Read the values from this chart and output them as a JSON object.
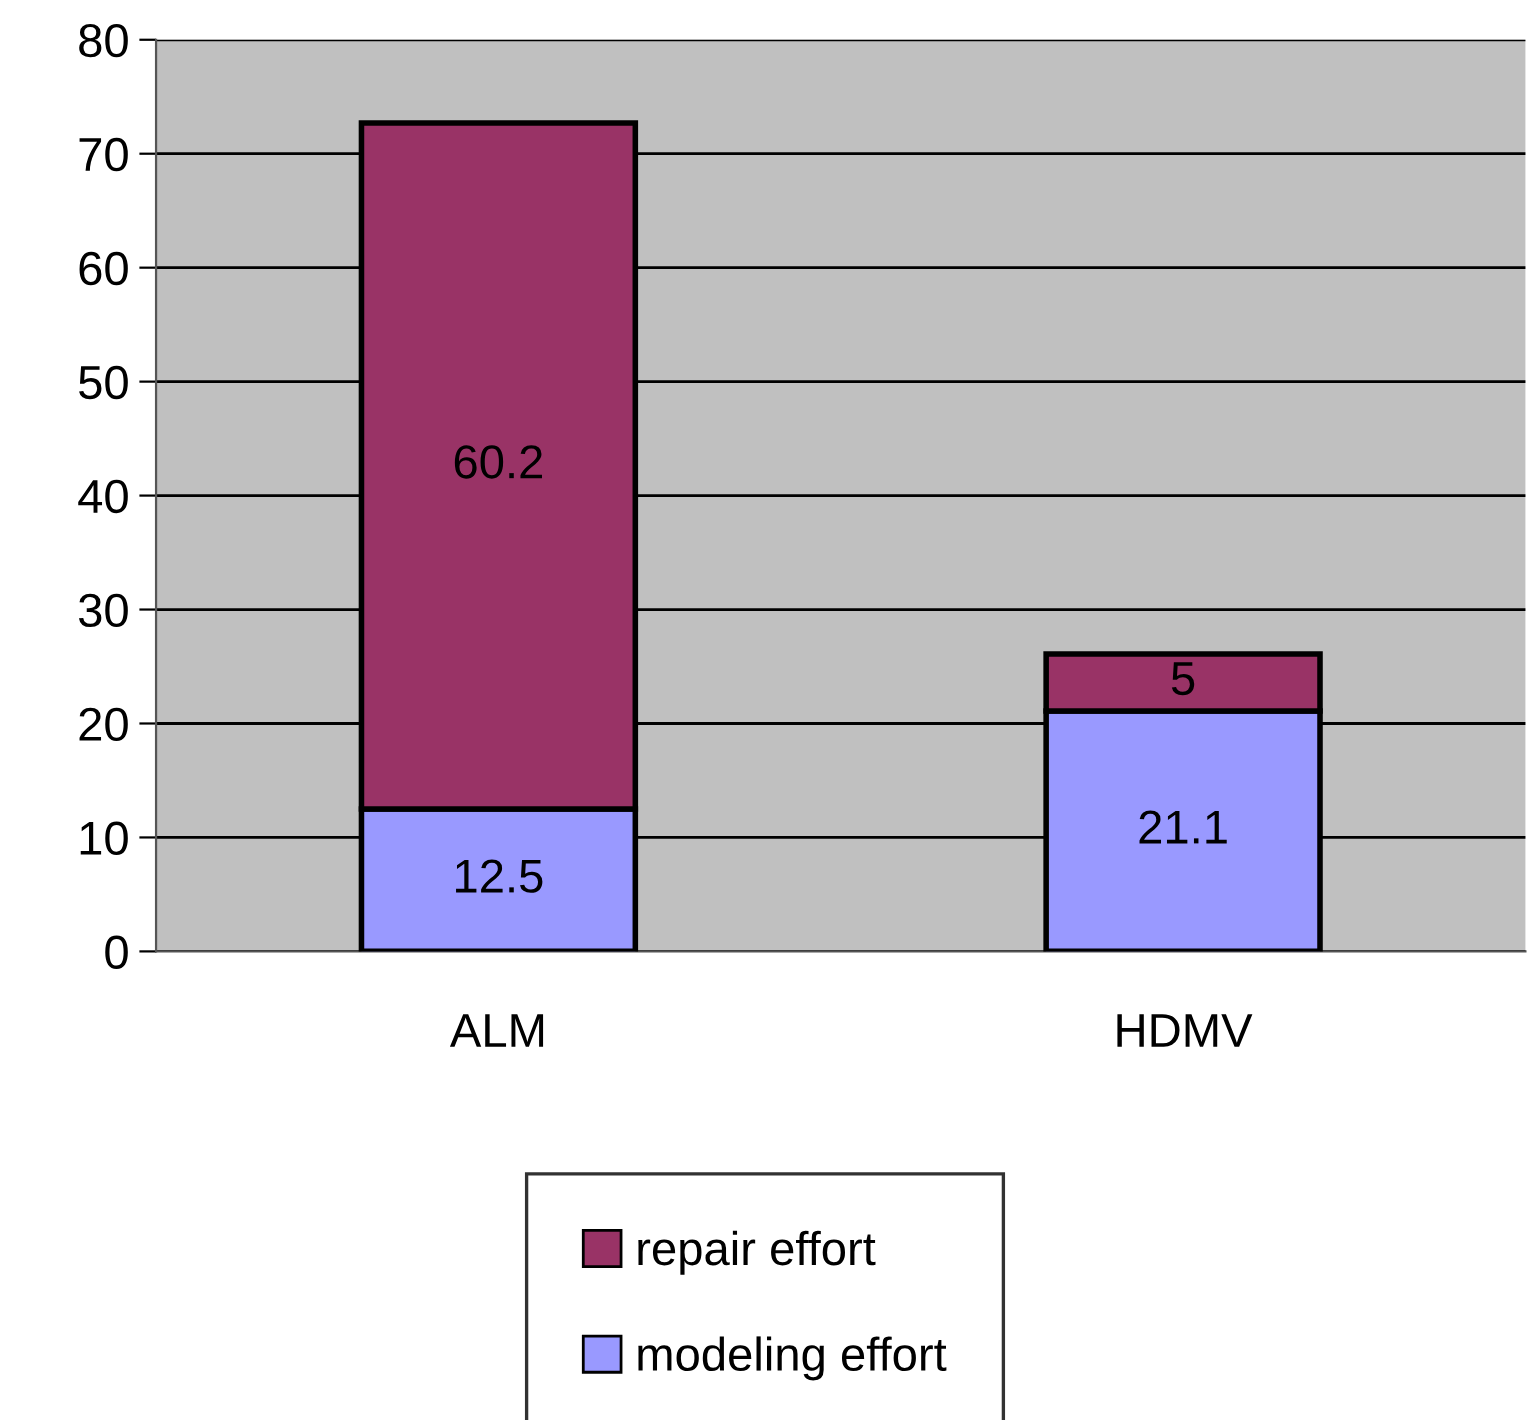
{
  "chart_data": {
    "type": "bar",
    "stacked": true,
    "categories": [
      "ALM",
      "HDMV"
    ],
    "series": [
      {
        "name": "modeling effort",
        "color": "#9999ff",
        "values": [
          12.5,
          21.1
        ]
      },
      {
        "name": "repair effort",
        "color": "#993366",
        "values": [
          60.2,
          5
        ]
      }
    ],
    "ylim": [
      0,
      80
    ],
    "yticks": [
      0,
      10,
      20,
      30,
      40,
      50,
      60,
      70,
      80
    ],
    "grid": "y",
    "legend": "bottom",
    "data_labels": true
  }
}
